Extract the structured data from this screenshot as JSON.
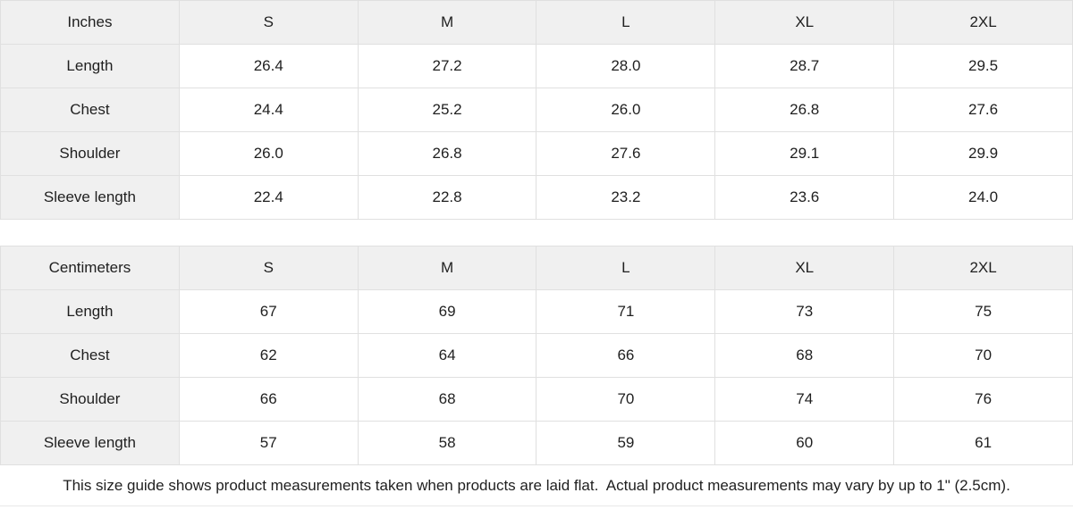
{
  "colors": {
    "header_bg": "#f0f0f0",
    "cell_bg": "#ffffff",
    "border": "#e0e0e0",
    "text": "#1f1f1f"
  },
  "tables": [
    {
      "unit_label": "Inches",
      "sizes": [
        "S",
        "M",
        "L",
        "XL",
        "2XL"
      ],
      "rows": [
        {
          "label": "Length",
          "values": [
            "26.4",
            "27.2",
            "28.0",
            "28.7",
            "29.5"
          ]
        },
        {
          "label": "Chest",
          "values": [
            "24.4",
            "25.2",
            "26.0",
            "26.8",
            "27.6"
          ]
        },
        {
          "label": "Shoulder",
          "values": [
            "26.0",
            "26.8",
            "27.6",
            "29.1",
            "29.9"
          ]
        },
        {
          "label": "Sleeve length",
          "values": [
            "22.4",
            "22.8",
            "23.2",
            "23.6",
            "24.0"
          ]
        }
      ]
    },
    {
      "unit_label": "Centimeters",
      "sizes": [
        "S",
        "M",
        "L",
        "XL",
        "2XL"
      ],
      "rows": [
        {
          "label": "Length",
          "values": [
            "67",
            "69",
            "71",
            "73",
            "75"
          ]
        },
        {
          "label": "Chest",
          "values": [
            "62",
            "64",
            "66",
            "68",
            "70"
          ]
        },
        {
          "label": "Shoulder",
          "values": [
            "66",
            "68",
            "70",
            "74",
            "76"
          ]
        },
        {
          "label": "Sleeve length",
          "values": [
            "57",
            "58",
            "59",
            "60",
            "61"
          ]
        }
      ]
    }
  ],
  "footer": {
    "note": "This size guide shows product measurements taken when products are laid flat.  Actual product measurements may vary by up to 1\" (2.5cm)."
  }
}
